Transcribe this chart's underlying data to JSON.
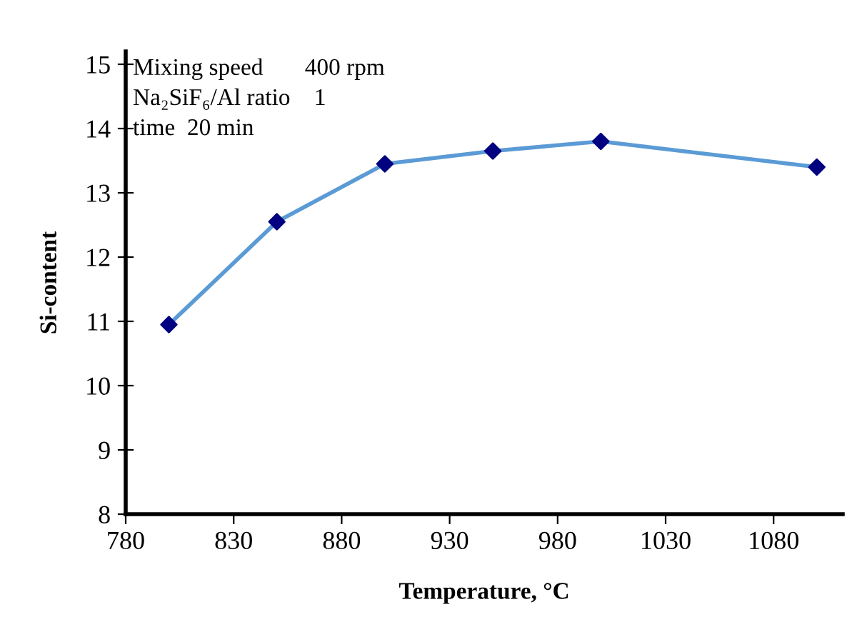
{
  "chart_data": {
    "type": "line",
    "xlabel": "Temperature, °C",
    "ylabel": "Si-content",
    "annotations": [
      "Mixing speed       400 rpm",
      "Na₂SiF₆/Al ratio    1",
      "time  20 min"
    ],
    "x": [
      800,
      850,
      900,
      950,
      1000,
      1100
    ],
    "series": [
      {
        "color": "#5b9bd5",
        "colors": [
          "#000080",
          "#000080",
          "#000080",
          "#000080",
          "#000080",
          "#000080"
        ],
        "values": [
          10.95,
          12.55,
          13.45,
          13.65,
          13.8,
          13.4
        ]
      }
    ],
    "marker": "diamond",
    "line_style": "solid",
    "grid": false,
    "legend": false,
    "xlim": [
      780,
      1112
    ],
    "xticks": [
      780,
      830,
      880,
      930,
      980,
      1030,
      1080
    ],
    "ylim": [
      8,
      15.2
    ],
    "yticks": [
      8,
      9,
      10,
      11,
      12,
      13,
      14,
      15
    ]
  }
}
